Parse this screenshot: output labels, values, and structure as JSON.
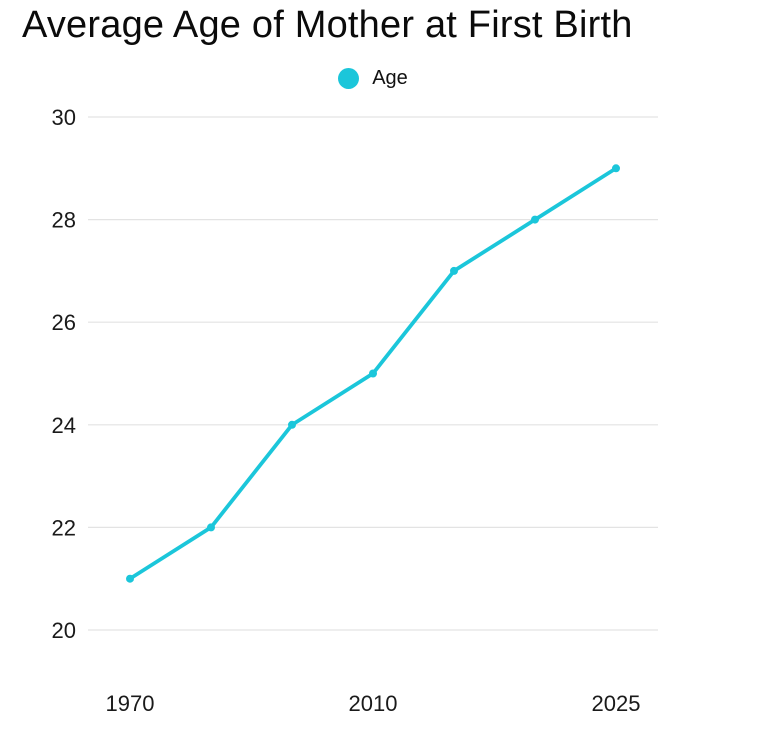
{
  "title": "Average Age of Mother at First Birth",
  "legend": {
    "label": "Age"
  },
  "colors": {
    "series": "#1BC6DA",
    "title_text": "#0B0B0B",
    "tick_text": "#1A1A1A",
    "gridline": "#E3E3E3",
    "background": "#FFFFFF"
  },
  "chart_data": {
    "type": "line",
    "title": "Average Age of Mother at First Birth",
    "series": [
      {
        "name": "Age",
        "color": "#1BC6DA",
        "values": [
          21,
          22,
          24,
          25,
          27,
          28,
          29
        ]
      }
    ],
    "num_points": 7,
    "x_tick_labels": [
      "1970",
      "2010",
      "2025"
    ],
    "x_tick_point_indexes": [
      0,
      3,
      6
    ],
    "y_ticks": [
      20,
      22,
      24,
      26,
      28,
      30
    ],
    "ylim": [
      20,
      30
    ],
    "grid": "horizontal-only",
    "legend_position": "top-center",
    "marker_style": "circle",
    "background": "#FFFFFF"
  }
}
